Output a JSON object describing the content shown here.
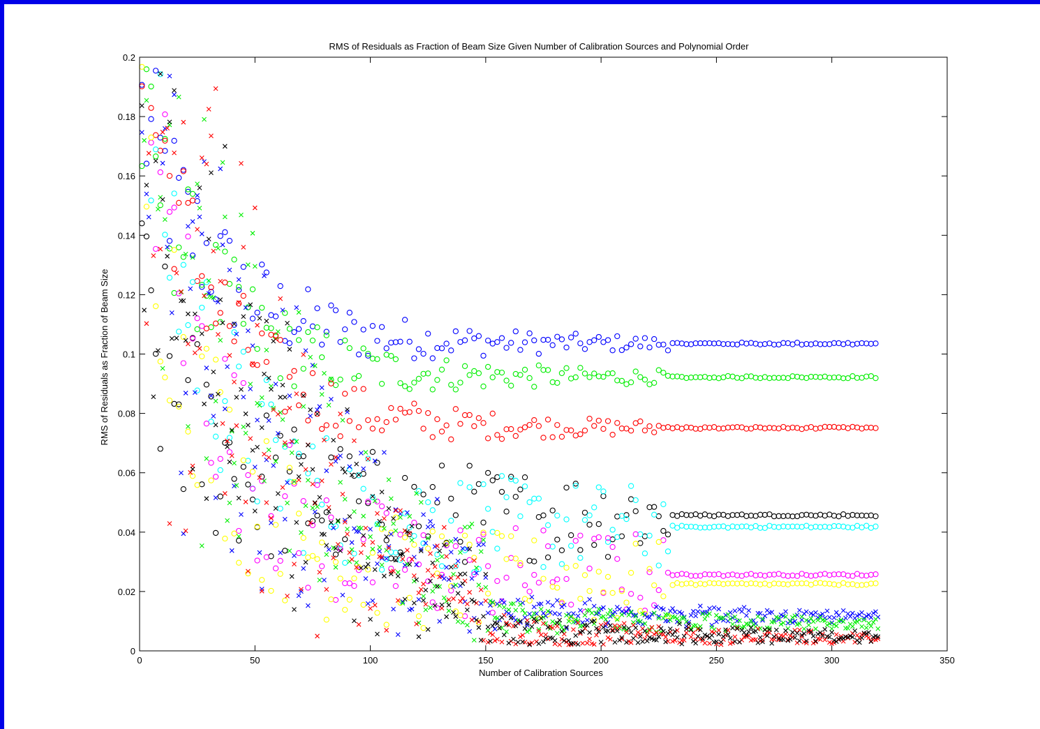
{
  "chart_data": {
    "type": "scatter",
    "title": "RMS of Residuals as Fraction of Beam Size Given Number of Calibration Sources and Polynomial Order",
    "xlabel": "Number of Calibration Sources",
    "ylabel": "RMS of Residuals as Fraction of Beam Size",
    "xlim": [
      0,
      350
    ],
    "ylim": [
      0,
      0.2
    ],
    "xticks": [
      "0",
      "50",
      "100",
      "150",
      "200",
      "250",
      "300",
      "350"
    ],
    "yticks": [
      "0",
      "0.02",
      "0.04",
      "0.06",
      "0.08",
      "0.1",
      "0.12",
      "0.14",
      "0.16",
      "0.18",
      "0.2"
    ],
    "grid": false,
    "legend": "none",
    "x_range_of_points": [
      1,
      320
    ],
    "series": [
      {
        "marker": "circle",
        "color": "#0000ff",
        "plateau": 0.1035,
        "start": 0.181
      },
      {
        "marker": "circle",
        "color": "#00ee00",
        "plateau": 0.0922,
        "start": 0.175
      },
      {
        "marker": "circle",
        "color": "#ff0000",
        "plateau": 0.0751,
        "start": 0.199
      },
      {
        "marker": "circle",
        "color": "#000000",
        "plateau": 0.0457,
        "start": 0.11
      },
      {
        "marker": "circle",
        "color": "#00ffff",
        "plateau": 0.0418,
        "start": 0.191
      },
      {
        "marker": "circle",
        "color": "#ff00ff",
        "plateau": 0.0256,
        "start": 0.198
      },
      {
        "marker": "circle",
        "color": "#ffff00",
        "plateau": 0.0225,
        "start": 0.168
      },
      {
        "marker": "x",
        "color": "#0000ff",
        "plateau": 0.0108,
        "start": 0.196
      },
      {
        "marker": "x",
        "color": "#00ee00",
        "plateau": 0.0085,
        "start": 0.195
      },
      {
        "marker": "x",
        "color": "#ff0000",
        "plateau": 0.0038,
        "start": 0.191
      },
      {
        "marker": "x",
        "color": "#000000",
        "plateau": 0.0042,
        "start": 0.197
      }
    ]
  }
}
